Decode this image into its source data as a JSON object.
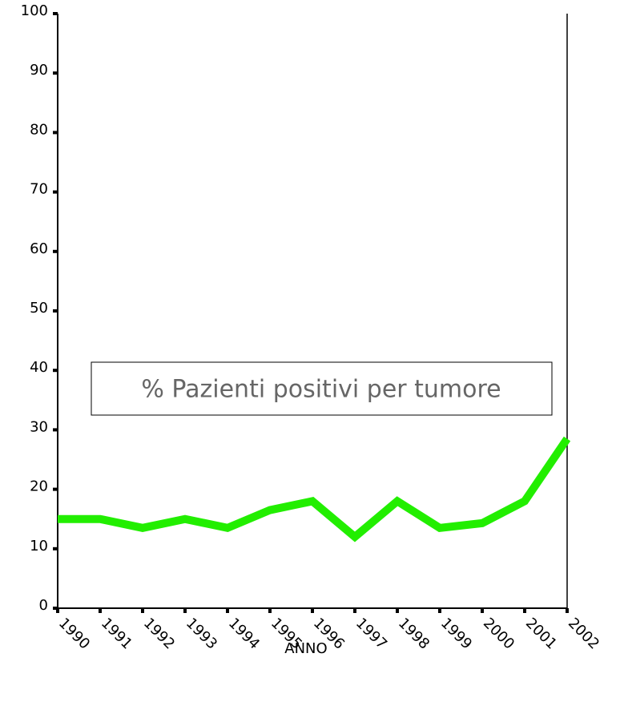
{
  "chart_data": {
    "type": "line",
    "x_label": "ANNO",
    "categories": [
      "1990",
      "1991",
      "1992",
      "1993",
      "1994",
      "1995",
      "1996",
      "1997",
      "1998",
      "1999",
      "2000",
      "2001",
      "2002"
    ],
    "series": [
      {
        "name": "% Pazienti positivi per tumore",
        "color": "#22ee00",
        "values": [
          15,
          15,
          13.5,
          15,
          13.5,
          16.5,
          18,
          12,
          18,
          13.5,
          14.3,
          18,
          28.5
        ]
      }
    ],
    "ylim": [
      0,
      100
    ],
    "yticks": [
      0,
      10,
      20,
      30,
      40,
      50,
      60,
      70,
      80,
      90,
      100
    ]
  }
}
